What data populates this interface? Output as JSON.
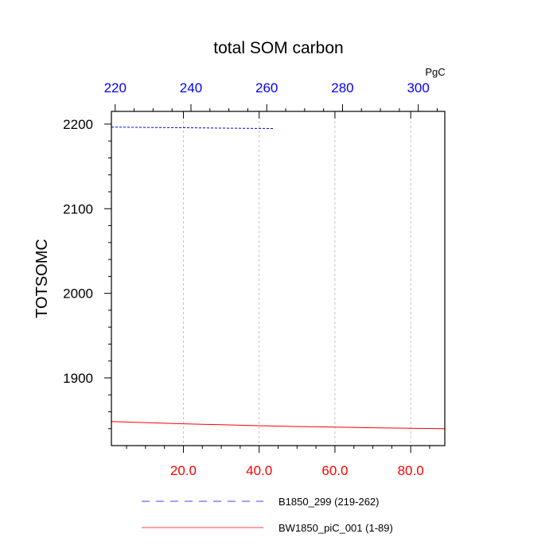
{
  "chart_data": {
    "type": "line",
    "title": "total SOM carbon",
    "ylabel": "TOTSOMC",
    "units": "PgC",
    "grid": "vertical dashed",
    "bottom_axis": {
      "xlim": [
        1,
        89
      ],
      "ticks": [
        20,
        40,
        60,
        80
      ],
      "tick_labels": [
        "20.0",
        "40.0",
        "60.0",
        "80.0"
      ],
      "color": "#ff0000"
    },
    "top_axis": {
      "xlim": [
        219,
        307
      ],
      "ticks": [
        220,
        240,
        260,
        280,
        300
      ],
      "tick_labels": [
        "220",
        "240",
        "260",
        "280",
        "300"
      ],
      "color": "#0000ff"
    },
    "left_axis": {
      "ylim": [
        1820,
        2215
      ],
      "ticks": [
        1900,
        2000,
        2100,
        2200
      ],
      "tick_labels": [
        "1900",
        "2000",
        "2100",
        "2200"
      ]
    },
    "series": [
      {
        "name": "B1850_299 (219-262)",
        "axis": "top",
        "color": "#0000ff",
        "dash": "dashed",
        "x": [
          219,
          230,
          240,
          250,
          262
        ],
        "values": [
          2196.5,
          2196.0,
          2195.6,
          2195.2,
          2194.8
        ]
      },
      {
        "name": "BW1850_piC_001 (1-89)",
        "axis": "bottom",
        "color": "#ff0000",
        "dash": "solid",
        "x": [
          1,
          10,
          20,
          30,
          40,
          50,
          60,
          70,
          80,
          89
        ],
        "values": [
          1848.5,
          1847.2,
          1845.8,
          1844.6,
          1843.5,
          1842.6,
          1841.8,
          1841.1,
          1840.5,
          1840.0
        ]
      }
    ]
  }
}
